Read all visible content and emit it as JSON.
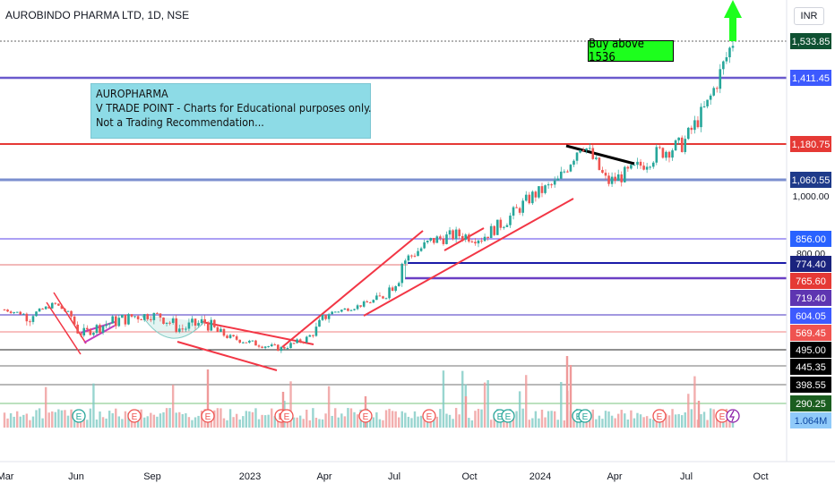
{
  "symbol_title": "AUROBINDO PHARMA LTD, 1D, NSE",
  "currency": "INR",
  "note": {
    "line1": "AUROPHARMA",
    "line2": "V TRADE POINT - Charts for Educational purposes only.",
    "line3": "Not a Trading Recommendation..."
  },
  "callout": "Buy above 1536",
  "colors": {
    "bullish": "#26a69a",
    "bearish": "#ef5350",
    "trend": "#f23645",
    "support": "#7b68ee",
    "callout": "#1dff1d"
  },
  "chart_data": {
    "type": "candlestick",
    "title": "AUROBINDO PHARMA LTD, 1D, NSE",
    "currency": "INR",
    "x_ticks": [
      "Mar",
      "Jun",
      "Sep",
      "2023",
      "Apr",
      "Jul",
      "Oct",
      "2024",
      "Apr",
      "Jul",
      "Oct"
    ],
    "y_ticks": [
      "1,000.00",
      "800.00"
    ],
    "price_levels": [
      {
        "label": "1,533.85",
        "value": 1533.85,
        "color": "#0f5132"
      },
      {
        "label": "1,411.45",
        "value": 1411.45,
        "color": "#3d5afe"
      },
      {
        "label": "1,180.75",
        "value": 1180.75,
        "color": "#e53935"
      },
      {
        "label": "1,060.55",
        "value": 1060.55,
        "color": "#1e3a8a"
      },
      {
        "label": "856.00",
        "value": 856.0,
        "color": "#2962ff"
      },
      {
        "label": "774.40",
        "value": 774.4,
        "color": "#1a237e"
      },
      {
        "label": "765.60",
        "value": 765.6,
        "color": "#e53935"
      },
      {
        "label": "719.40",
        "value": 719.4,
        "color": "#5e35b1"
      },
      {
        "label": "604.05",
        "value": 604.05,
        "color": "#3d5afe"
      },
      {
        "label": "569.45",
        "value": 569.45,
        "color": "#ef5350"
      },
      {
        "label": "495.00",
        "value": 495.0,
        "color": "#000000"
      },
      {
        "label": "445.35",
        "value": 445.35,
        "color": "#000000"
      },
      {
        "label": "398.55",
        "value": 398.55,
        "color": "#000000"
      },
      {
        "label": "290.25",
        "value": 290.25,
        "color": "#1b5e20"
      }
    ],
    "volume_label": "1.064M",
    "price_path": [
      [
        "2022-03",
        640
      ],
      [
        "2022-04",
        600
      ],
      [
        "2022-05",
        680
      ],
      [
        "2022-06",
        560
      ],
      [
        "2022-07",
        585
      ],
      [
        "2022-08",
        600
      ],
      [
        "2022-09",
        610
      ],
      [
        "2022-10",
        575
      ],
      [
        "2022-11",
        590
      ],
      [
        "2022-12",
        545
      ],
      [
        "2023-01",
        520
      ],
      [
        "2023-02",
        500
      ],
      [
        "2023-03",
        540
      ],
      [
        "2023-04",
        620
      ],
      [
        "2023-05",
        660
      ],
      [
        "2023-06",
        720
      ],
      [
        "2023-07",
        790
      ],
      [
        "2023-08",
        850
      ],
      [
        "2023-09",
        870
      ],
      [
        "2023-10",
        860
      ],
      [
        "2023-11",
        920
      ],
      [
        "2023-12",
        1000
      ],
      [
        "2024-01",
        1050
      ],
      [
        "2024-02",
        1190
      ],
      [
        "2024-03",
        1050
      ],
      [
        "2024-04",
        1090
      ],
      [
        "2024-05",
        1150
      ],
      [
        "2024-06",
        1180
      ],
      [
        "2024-07",
        1320
      ],
      [
        "2024-08",
        1533.85
      ]
    ],
    "events": [
      "E",
      "E",
      "E",
      "E",
      "E",
      "E",
      "E",
      "E",
      "E",
      "E",
      "E",
      "E",
      "E",
      "E"
    ],
    "grid": false
  }
}
